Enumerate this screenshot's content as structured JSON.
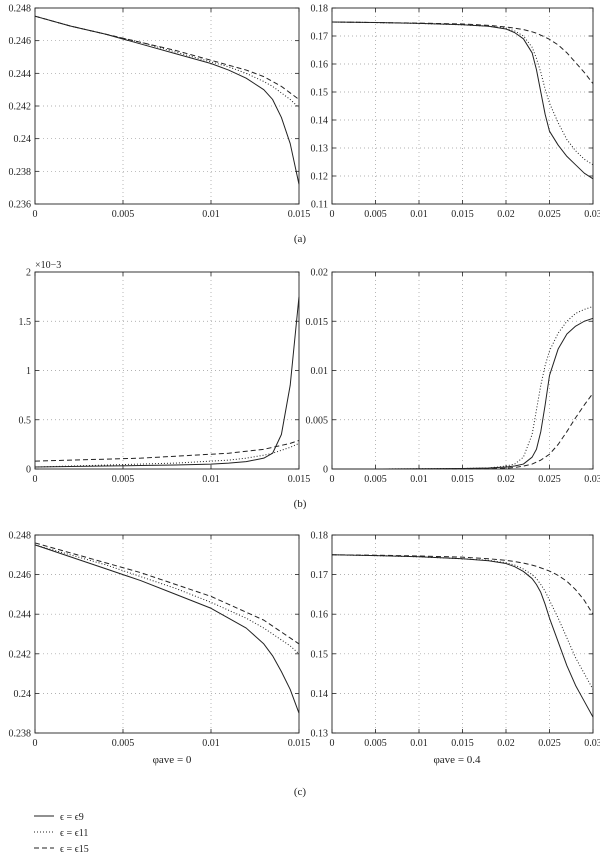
{
  "panel_labels": [
    "(a)",
    "(b)",
    "(c)"
  ],
  "column_labels": [
    "φave = 0",
    "φave = 0.4"
  ],
  "legend": [
    {
      "label": "ϵ = ϵ9",
      "style": "solid"
    },
    {
      "label": "ϵ = ϵ11",
      "style": "dotted"
    },
    {
      "label": "ϵ = ϵ15",
      "style": "dashed"
    }
  ],
  "chart_data": [
    {
      "type": "line",
      "panel": "a",
      "column": 0,
      "xlim": [
        0,
        0.015
      ],
      "ylim": [
        0.236,
        0.248
      ],
      "xticks": [
        "0",
        "0.005",
        "0.01",
        "0.015"
      ],
      "yticks": [
        "0.236",
        "0.238",
        "0.24",
        "0.242",
        "0.244",
        "0.246",
        "0.248"
      ],
      "grid": true,
      "x": [
        0,
        0.002,
        0.004,
        0.006,
        0.008,
        0.01,
        0.011,
        0.012,
        0.013,
        0.0135,
        0.014,
        0.0145,
        0.015
      ],
      "series": [
        {
          "style": "solid",
          "values": [
            0.2475,
            0.2469,
            0.2464,
            0.2458,
            0.2452,
            0.2446,
            0.2442,
            0.2437,
            0.243,
            0.2424,
            0.2413,
            0.2397,
            0.2372
          ]
        },
        {
          "style": "dotted",
          "values": [
            0.2475,
            0.2469,
            0.2464,
            0.2459,
            0.2453,
            0.2447,
            0.2444,
            0.244,
            0.2435,
            0.2432,
            0.2428,
            0.2424,
            0.2419
          ]
        },
        {
          "style": "dashed",
          "values": [
            0.2475,
            0.2469,
            0.2464,
            0.2459,
            0.2454,
            0.2448,
            0.2445,
            0.2442,
            0.2438,
            0.2435,
            0.2432,
            0.2428,
            0.2424
          ]
        }
      ]
    },
    {
      "type": "line",
      "panel": "a",
      "column": 1,
      "xlim": [
        0,
        0.03
      ],
      "ylim": [
        0.11,
        0.18
      ],
      "xticks": [
        "0",
        "0.005",
        "0.01",
        "0.015",
        "0.02",
        "0.025",
        "0.03"
      ],
      "yticks": [
        "0.11",
        "0.12",
        "0.13",
        "0.14",
        "0.15",
        "0.16",
        "0.17",
        "0.18"
      ],
      "grid": true,
      "x": [
        0,
        0.005,
        0.01,
        0.015,
        0.018,
        0.02,
        0.021,
        0.022,
        0.023,
        0.0235,
        0.024,
        0.0245,
        0.025,
        0.026,
        0.027,
        0.028,
        0.029,
        0.03
      ],
      "series": [
        {
          "style": "solid",
          "values": [
            0.175,
            0.1748,
            0.1745,
            0.174,
            0.1735,
            0.1725,
            0.1712,
            0.169,
            0.164,
            0.158,
            0.15,
            0.142,
            0.136,
            0.131,
            0.127,
            0.124,
            0.121,
            0.119
          ]
        },
        {
          "style": "dotted",
          "values": [
            0.175,
            0.1748,
            0.1745,
            0.174,
            0.1735,
            0.1728,
            0.1718,
            0.17,
            0.166,
            0.162,
            0.157,
            0.151,
            0.146,
            0.139,
            0.133,
            0.129,
            0.126,
            0.124
          ]
        },
        {
          "style": "dashed",
          "values": [
            0.175,
            0.1748,
            0.1746,
            0.1743,
            0.1738,
            0.1732,
            0.1728,
            0.1723,
            0.1715,
            0.171,
            0.1703,
            0.1696,
            0.1688,
            0.1668,
            0.164,
            0.1605,
            0.157,
            0.153
          ]
        }
      ]
    },
    {
      "type": "line",
      "panel": "b",
      "column": 0,
      "xlim": [
        0,
        0.015
      ],
      "ylim": [
        0,
        2
      ],
      "y_scale_label": "×10−3",
      "xticks": [
        "0",
        "0.005",
        "0.01",
        "0.015"
      ],
      "yticks": [
        "0",
        "0.5",
        "1",
        "1.5",
        "2"
      ],
      "grid": true,
      "x": [
        0,
        0.002,
        0.004,
        0.006,
        0.008,
        0.01,
        0.011,
        0.012,
        0.013,
        0.0135,
        0.014,
        0.0145,
        0.015
      ],
      "series": [
        {
          "style": "solid",
          "values": [
            0.02,
            0.025,
            0.03,
            0.035,
            0.04,
            0.05,
            0.06,
            0.075,
            0.11,
            0.16,
            0.35,
            0.85,
            1.75
          ]
        },
        {
          "style": "dotted",
          "values": [
            0.02,
            0.03,
            0.04,
            0.05,
            0.06,
            0.08,
            0.09,
            0.11,
            0.14,
            0.16,
            0.19,
            0.22,
            0.26
          ]
        },
        {
          "style": "dashed",
          "values": [
            0.08,
            0.09,
            0.1,
            0.11,
            0.13,
            0.15,
            0.16,
            0.18,
            0.2,
            0.22,
            0.24,
            0.26,
            0.29
          ]
        }
      ]
    },
    {
      "type": "line",
      "panel": "b",
      "column": 1,
      "xlim": [
        0,
        0.03
      ],
      "ylim": [
        0,
        0.02
      ],
      "xticks": [
        "0",
        "0.005",
        "0.01",
        "0.015",
        "0.02",
        "0.025",
        "0.03"
      ],
      "yticks": [
        "0",
        "0.005",
        "0.01",
        "0.015",
        "0.02"
      ],
      "grid": true,
      "x": [
        0,
        0.005,
        0.01,
        0.015,
        0.018,
        0.02,
        0.021,
        0.022,
        0.023,
        0.0235,
        0.024,
        0.0245,
        0.025,
        0.026,
        0.027,
        0.028,
        0.029,
        0.03
      ],
      "series": [
        {
          "style": "solid",
          "values": [
            0,
            0,
            2e-05,
            5e-05,
            0.0001,
            0.0002,
            0.0003,
            0.0005,
            0.0012,
            0.002,
            0.0038,
            0.0065,
            0.0095,
            0.0122,
            0.0137,
            0.0145,
            0.015,
            0.0153
          ]
        },
        {
          "style": "dotted",
          "values": [
            0,
            0,
            2e-05,
            5e-05,
            0.0001,
            0.0003,
            0.0005,
            0.0012,
            0.0035,
            0.006,
            0.0085,
            0.0105,
            0.012,
            0.0138,
            0.015,
            0.0158,
            0.0162,
            0.0165
          ]
        },
        {
          "style": "dashed",
          "values": [
            0,
            0,
            0,
            1e-05,
            3e-05,
            8e-05,
            0.00015,
            0.0003,
            0.0005,
            0.0007,
            0.0009,
            0.0012,
            0.0015,
            0.0025,
            0.0038,
            0.0052,
            0.0065,
            0.0077
          ]
        }
      ]
    },
    {
      "type": "line",
      "panel": "c",
      "column": 0,
      "xlim": [
        0,
        0.015
      ],
      "ylim": [
        0.238,
        0.248
      ],
      "xticks": [
        "0",
        "0.005",
        "0.01",
        "0.015"
      ],
      "yticks": [
        "0.238",
        "0.24",
        "0.242",
        "0.244",
        "0.246",
        "0.248"
      ],
      "grid": true,
      "x": [
        0,
        0.002,
        0.004,
        0.006,
        0.008,
        0.01,
        0.011,
        0.012,
        0.013,
        0.0135,
        0.014,
        0.0145,
        0.015
      ],
      "series": [
        {
          "style": "solid",
          "values": [
            0.2475,
            0.2469,
            0.2463,
            0.2457,
            0.245,
            0.2443,
            0.2438,
            0.2433,
            0.2425,
            0.2419,
            0.2411,
            0.2402,
            0.239
          ]
        },
        {
          "style": "dotted",
          "values": [
            0.2475,
            0.247,
            0.2465,
            0.2459,
            0.2453,
            0.2446,
            0.2442,
            0.2438,
            0.2433,
            0.243,
            0.2427,
            0.2424,
            0.242
          ]
        },
        {
          "style": "dashed",
          "values": [
            0.2476,
            0.2471,
            0.2466,
            0.2461,
            0.2455,
            0.2449,
            0.2445,
            0.2441,
            0.2437,
            0.2434,
            0.2431,
            0.2428,
            0.2425
          ]
        }
      ]
    },
    {
      "type": "line",
      "panel": "c",
      "column": 1,
      "xlim": [
        0,
        0.03
      ],
      "ylim": [
        0.13,
        0.18
      ],
      "xticks": [
        "0",
        "0.005",
        "0.01",
        "0.015",
        "0.02",
        "0.025",
        "0.03"
      ],
      "yticks": [
        "0.13",
        "0.14",
        "0.15",
        "0.16",
        "0.17",
        "0.18"
      ],
      "grid": true,
      "x": [
        0,
        0.005,
        0.01,
        0.015,
        0.018,
        0.02,
        0.021,
        0.022,
        0.023,
        0.0235,
        0.024,
        0.0245,
        0.025,
        0.026,
        0.027,
        0.028,
        0.029,
        0.03
      ],
      "series": [
        {
          "style": "solid",
          "values": [
            0.175,
            0.1748,
            0.1745,
            0.174,
            0.1735,
            0.1728,
            0.172,
            0.1708,
            0.169,
            0.1675,
            0.1655,
            0.1625,
            0.159,
            0.153,
            0.147,
            0.142,
            0.138,
            0.134
          ]
        },
        {
          "style": "dotted",
          "values": [
            0.175,
            0.1748,
            0.1745,
            0.174,
            0.1736,
            0.173,
            0.1724,
            0.1714,
            0.17,
            0.169,
            0.1675,
            0.1658,
            0.1635,
            0.159,
            0.154,
            0.149,
            0.145,
            0.141
          ]
        },
        {
          "style": "dashed",
          "values": [
            0.175,
            0.1749,
            0.1747,
            0.1744,
            0.174,
            0.1736,
            0.1733,
            0.1729,
            0.1724,
            0.1721,
            0.1717,
            0.1713,
            0.1709,
            0.1698,
            0.1683,
            0.1662,
            0.1635,
            0.16
          ]
        }
      ]
    }
  ]
}
